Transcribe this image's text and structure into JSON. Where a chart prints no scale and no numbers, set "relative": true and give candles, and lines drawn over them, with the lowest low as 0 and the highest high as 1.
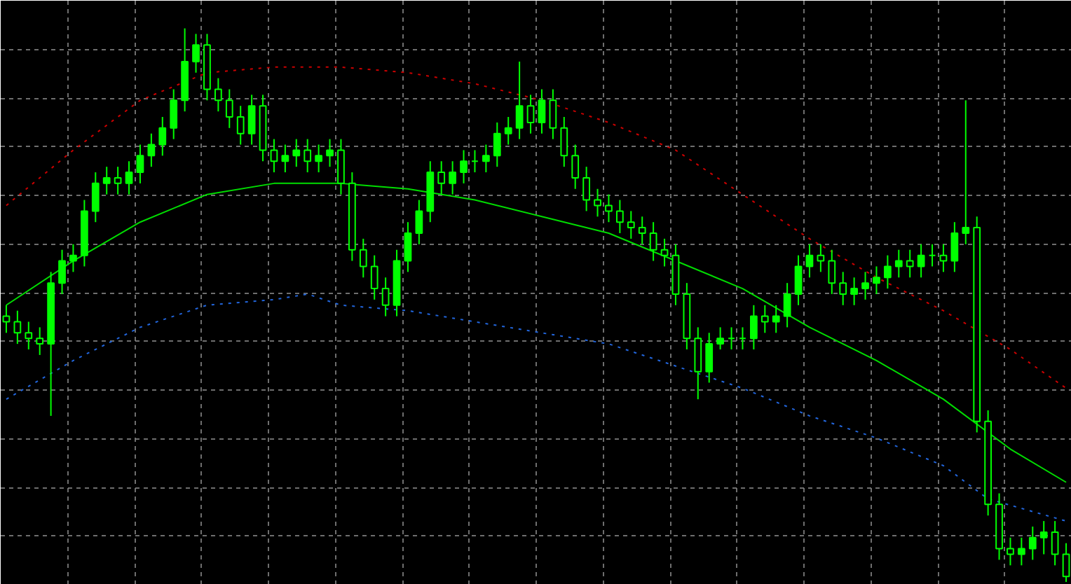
{
  "chart_data": {
    "type": "candlestick",
    "relative": true,
    "grid": true,
    "color": "#00ff00",
    "categories": [
      null,
      null,
      null,
      null,
      null,
      null,
      null,
      null,
      null,
      null,
      null,
      null,
      null,
      null,
      null,
      null,
      null,
      null,
      null,
      null,
      null,
      null,
      null,
      null,
      null,
      null,
      null,
      null,
      null,
      null,
      null,
      null,
      null,
      null,
      null,
      null,
      null,
      null,
      null,
      null,
      null,
      null,
      null,
      null,
      null,
      null,
      null,
      null,
      null,
      null,
      null,
      null,
      null,
      null,
      null,
      null,
      null,
      null,
      null,
      null,
      null,
      null,
      null,
      null,
      null,
      null,
      null,
      null,
      null,
      null,
      null,
      null,
      null,
      null,
      null,
      null,
      null,
      null,
      null,
      null,
      null,
      null,
      null,
      null,
      null,
      null,
      null,
      null,
      null,
      null,
      null,
      null,
      null,
      null,
      null,
      null
    ],
    "ohlc": [
      [
        0.48,
        0.5,
        0.45,
        0.47
      ],
      [
        0.47,
        0.49,
        0.43,
        0.45
      ],
      [
        0.45,
        0.47,
        0.42,
        0.44
      ],
      [
        0.44,
        0.46,
        0.41,
        0.43
      ],
      [
        0.43,
        0.56,
        0.3,
        0.54
      ],
      [
        0.54,
        0.6,
        0.52,
        0.58
      ],
      [
        0.58,
        0.61,
        0.56,
        0.59
      ],
      [
        0.59,
        0.69,
        0.57,
        0.67
      ],
      [
        0.67,
        0.74,
        0.65,
        0.72
      ],
      [
        0.72,
        0.75,
        0.7,
        0.73
      ],
      [
        0.73,
        0.75,
        0.7,
        0.72
      ],
      [
        0.72,
        0.76,
        0.7,
        0.74
      ],
      [
        0.74,
        0.79,
        0.72,
        0.77
      ],
      [
        0.77,
        0.81,
        0.75,
        0.79
      ],
      [
        0.79,
        0.84,
        0.77,
        0.82
      ],
      [
        0.82,
        0.89,
        0.8,
        0.87
      ],
      [
        0.87,
        1.0,
        0.85,
        0.94
      ],
      [
        0.94,
        0.99,
        0.92,
        0.97
      ],
      [
        0.97,
        0.99,
        0.87,
        0.89
      ],
      [
        0.89,
        0.91,
        0.85,
        0.87
      ],
      [
        0.87,
        0.89,
        0.82,
        0.84
      ],
      [
        0.84,
        0.86,
        0.79,
        0.81
      ],
      [
        0.81,
        0.88,
        0.79,
        0.86
      ],
      [
        0.86,
        0.88,
        0.76,
        0.78
      ],
      [
        0.78,
        0.8,
        0.74,
        0.76
      ],
      [
        0.76,
        0.79,
        0.74,
        0.77
      ],
      [
        0.77,
        0.8,
        0.75,
        0.78
      ],
      [
        0.78,
        0.8,
        0.74,
        0.76
      ],
      [
        0.76,
        0.79,
        0.74,
        0.77
      ],
      [
        0.77,
        0.8,
        0.75,
        0.78
      ],
      [
        0.78,
        0.8,
        0.7,
        0.72
      ],
      [
        0.72,
        0.74,
        0.58,
        0.6
      ],
      [
        0.6,
        0.62,
        0.55,
        0.57
      ],
      [
        0.57,
        0.59,
        0.51,
        0.53
      ],
      [
        0.53,
        0.55,
        0.48,
        0.5
      ],
      [
        0.5,
        0.6,
        0.48,
        0.58
      ],
      [
        0.58,
        0.65,
        0.56,
        0.63
      ],
      [
        0.63,
        0.69,
        0.61,
        0.67
      ],
      [
        0.67,
        0.76,
        0.65,
        0.74
      ],
      [
        0.74,
        0.76,
        0.7,
        0.72
      ],
      [
        0.72,
        0.76,
        0.7,
        0.74
      ],
      [
        0.74,
        0.78,
        0.72,
        0.76
      ],
      [
        0.76,
        0.78,
        0.74,
        0.76
      ],
      [
        0.76,
        0.79,
        0.74,
        0.77
      ],
      [
        0.77,
        0.83,
        0.75,
        0.81
      ],
      [
        0.81,
        0.84,
        0.79,
        0.82
      ],
      [
        0.82,
        0.94,
        0.8,
        0.86
      ],
      [
        0.86,
        0.88,
        0.81,
        0.83
      ],
      [
        0.83,
        0.89,
        0.81,
        0.87
      ],
      [
        0.87,
        0.89,
        0.8,
        0.82
      ],
      [
        0.82,
        0.84,
        0.75,
        0.77
      ],
      [
        0.77,
        0.79,
        0.71,
        0.73
      ],
      [
        0.73,
        0.75,
        0.67,
        0.69
      ],
      [
        0.69,
        0.71,
        0.66,
        0.68
      ],
      [
        0.68,
        0.7,
        0.65,
        0.67
      ],
      [
        0.67,
        0.69,
        0.63,
        0.65
      ],
      [
        0.65,
        0.67,
        0.62,
        0.64
      ],
      [
        0.64,
        0.66,
        0.61,
        0.63
      ],
      [
        0.63,
        0.65,
        0.58,
        0.6
      ],
      [
        0.6,
        0.62,
        0.57,
        0.59
      ],
      [
        0.59,
        0.61,
        0.5,
        0.52
      ],
      [
        0.52,
        0.54,
        0.42,
        0.44
      ],
      [
        0.44,
        0.46,
        0.33,
        0.38
      ],
      [
        0.38,
        0.45,
        0.36,
        0.43
      ],
      [
        0.43,
        0.46,
        0.42,
        0.44
      ],
      [
        0.44,
        0.46,
        0.42,
        0.44
      ],
      [
        0.44,
        0.46,
        0.42,
        0.44
      ],
      [
        0.44,
        0.5,
        0.42,
        0.48
      ],
      [
        0.48,
        0.5,
        0.45,
        0.47
      ],
      [
        0.47,
        0.5,
        0.45,
        0.48
      ],
      [
        0.48,
        0.54,
        0.46,
        0.52
      ],
      [
        0.52,
        0.59,
        0.5,
        0.57
      ],
      [
        0.57,
        0.61,
        0.55,
        0.59
      ],
      [
        0.59,
        0.61,
        0.56,
        0.58
      ],
      [
        0.58,
        0.6,
        0.52,
        0.54
      ],
      [
        0.54,
        0.56,
        0.5,
        0.52
      ],
      [
        0.52,
        0.55,
        0.5,
        0.53
      ],
      [
        0.53,
        0.56,
        0.51,
        0.54
      ],
      [
        0.54,
        0.57,
        0.52,
        0.55
      ],
      [
        0.55,
        0.59,
        0.53,
        0.57
      ],
      [
        0.57,
        0.6,
        0.55,
        0.58
      ],
      [
        0.58,
        0.6,
        0.55,
        0.57
      ],
      [
        0.57,
        0.61,
        0.55,
        0.59
      ],
      [
        0.59,
        0.61,
        0.57,
        0.59
      ],
      [
        0.59,
        0.61,
        0.56,
        0.58
      ],
      [
        0.58,
        0.65,
        0.56,
        0.63
      ],
      [
        0.63,
        0.87,
        0.61,
        0.64
      ],
      [
        0.64,
        0.66,
        0.27,
        0.29
      ],
      [
        0.29,
        0.31,
        0.12,
        0.14
      ],
      [
        0.14,
        0.16,
        0.04,
        0.06
      ],
      [
        0.06,
        0.08,
        0.03,
        0.05
      ],
      [
        0.05,
        0.08,
        0.03,
        0.06
      ],
      [
        0.06,
        0.1,
        0.04,
        0.08
      ],
      [
        0.08,
        0.11,
        0.05,
        0.09
      ],
      [
        0.09,
        0.11,
        0.03,
        0.05
      ],
      [
        0.05,
        0.07,
        0.0,
        0.01
      ]
    ],
    "series": [
      {
        "type": "line",
        "color": "#00dd00",
        "line_style": "solid",
        "values": [
          0.5,
          null,
          null,
          null,
          null,
          null,
          0.58,
          null,
          null,
          null,
          null,
          null,
          0.65,
          null,
          null,
          null,
          null,
          null,
          0.7,
          null,
          null,
          null,
          null,
          null,
          0.72,
          null,
          null,
          null,
          null,
          null,
          0.72,
          null,
          null,
          null,
          null,
          null,
          0.71,
          null,
          null,
          null,
          null,
          null,
          0.69,
          null,
          null,
          null,
          null,
          null,
          0.66,
          null,
          null,
          null,
          null,
          null,
          0.63,
          null,
          null,
          null,
          null,
          null,
          0.58,
          null,
          null,
          null,
          null,
          null,
          0.53,
          null,
          null,
          null,
          null,
          null,
          0.46,
          null,
          null,
          null,
          null,
          null,
          0.4,
          null,
          null,
          null,
          null,
          null,
          0.33,
          null,
          null,
          null,
          null,
          null,
          0.24,
          null,
          null,
          null,
          null,
          0.18
        ]
      },
      {
        "type": "line",
        "color": "#cc0000",
        "line_style": "dotted",
        "values": [
          0.68,
          null,
          null,
          null,
          null,
          null,
          0.78,
          null,
          null,
          null,
          null,
          null,
          0.87,
          null,
          null,
          null,
          null,
          null,
          0.92,
          null,
          null,
          null,
          null,
          null,
          0.93,
          null,
          null,
          null,
          null,
          null,
          0.93,
          null,
          null,
          null,
          null,
          null,
          0.92,
          null,
          null,
          null,
          null,
          null,
          0.9,
          null,
          null,
          null,
          null,
          null,
          0.87,
          null,
          null,
          null,
          null,
          null,
          0.83,
          null,
          null,
          null,
          null,
          null,
          0.78,
          null,
          null,
          null,
          null,
          null,
          0.7,
          null,
          null,
          null,
          null,
          null,
          0.62,
          null,
          null,
          null,
          null,
          null,
          0.55,
          null,
          null,
          null,
          null,
          null,
          0.49,
          null,
          null,
          null,
          null,
          null,
          0.42,
          null,
          null,
          null,
          null,
          0.35
        ]
      },
      {
        "type": "line",
        "color": "#2266dd",
        "line_style": "dotted",
        "values": [
          0.33,
          null,
          null,
          null,
          null,
          null,
          0.4,
          null,
          null,
          null,
          null,
          null,
          0.46,
          null,
          null,
          null,
          null,
          null,
          0.5,
          null,
          null,
          null,
          null,
          null,
          0.51,
          null,
          null,
          0.52,
          null,
          null,
          0.5,
          null,
          null,
          null,
          null,
          null,
          0.49,
          null,
          null,
          null,
          null,
          null,
          0.47,
          null,
          null,
          null,
          null,
          null,
          0.45,
          null,
          null,
          null,
          null,
          null,
          0.43,
          null,
          null,
          null,
          null,
          null,
          0.39,
          null,
          null,
          null,
          null,
          null,
          0.35,
          null,
          null,
          null,
          null,
          null,
          0.3,
          null,
          null,
          null,
          null,
          null,
          0.26,
          null,
          null,
          null,
          null,
          null,
          0.21,
          null,
          null,
          null,
          0.15,
          null,
          null,
          null,
          null,
          null,
          null,
          0.11
        ]
      }
    ]
  }
}
